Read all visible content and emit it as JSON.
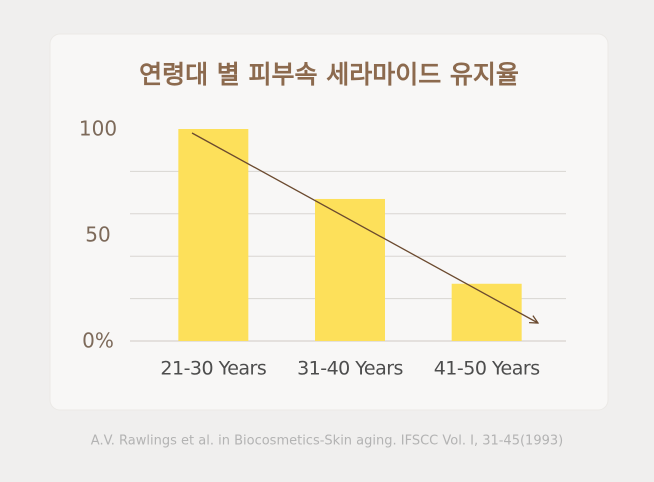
{
  "chart_data": {
    "type": "bar",
    "title": "연령대 별 피부속 세라마이드 유지율",
    "categories": [
      "21-30 Years",
      "31-40 Years",
      "41-50 Years"
    ],
    "values": [
      100,
      67,
      27
    ],
    "color": "#fde05a",
    "ylim": [
      0,
      100
    ],
    "yticks": [
      {
        "value": 0,
        "label": "0%"
      },
      50,
      100
    ],
    "grid_lines": [
      20,
      40,
      60,
      80
    ],
    "trend_arrow": true,
    "source": "A.V. Rawlings et al. in Biocosmetics-Skin aging. IFSCC Vol. I, 31-45(1993)"
  }
}
